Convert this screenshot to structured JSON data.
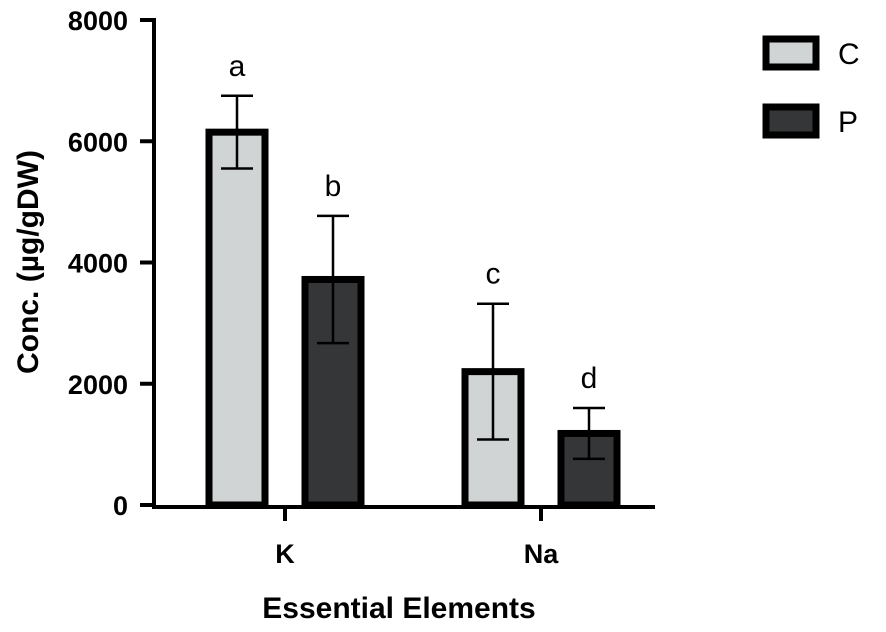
{
  "chart_data": {
    "type": "bar",
    "xlabel": "Essential Elements",
    "ylabel": "Conc. (µg/gDW)",
    "categories": [
      "K",
      "Na"
    ],
    "ylim": [
      0,
      8000
    ],
    "yticks": [
      "0",
      "2000",
      "4000",
      "6000",
      "8000"
    ],
    "series": [
      {
        "name": "C",
        "color": "#d1d4d5",
        "values": [
          6150,
          2200
        ],
        "errors": [
          600,
          1120
        ],
        "labels": [
          "a",
          "c"
        ]
      },
      {
        "name": "P",
        "color": "#353638",
        "values": [
          3720,
          1180
        ],
        "errors": [
          1050,
          420
        ],
        "labels": [
          "b",
          "d"
        ]
      }
    ],
    "legend_position": "top-right"
  }
}
